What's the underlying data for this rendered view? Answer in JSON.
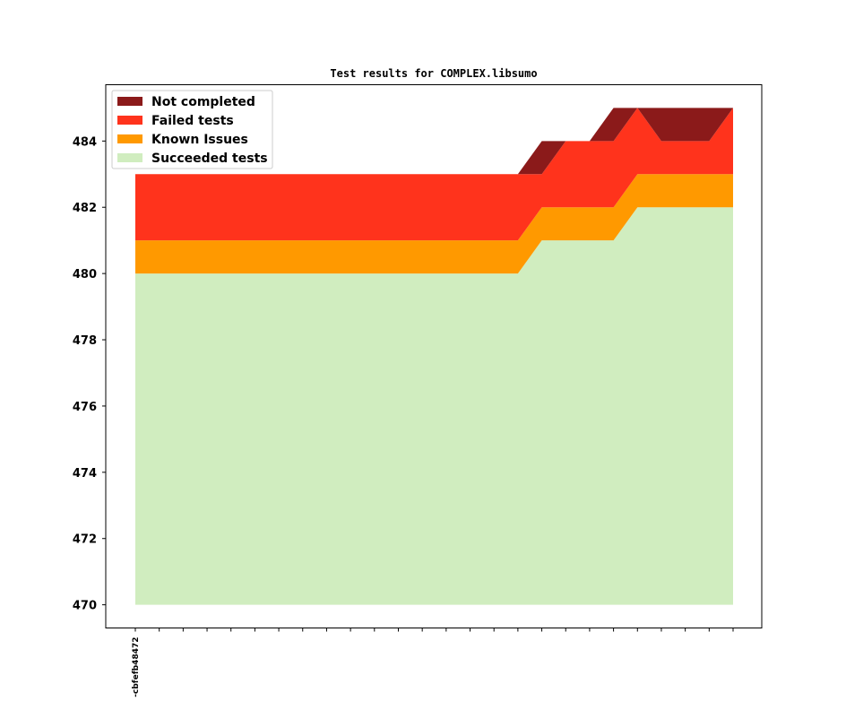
{
  "chart_data": {
    "type": "area",
    "title": "Test results for COMPLEX.libsumo",
    "xlabel": "",
    "ylabel": "",
    "ylim": [
      469.3,
      485.7
    ],
    "yticks": [
      470,
      472,
      474,
      476,
      478,
      480,
      482,
      484
    ],
    "xtick_count": 26,
    "x_labels": [
      "-cbfefb48472"
    ],
    "grid": false,
    "legend_position": "top-left",
    "series": [
      {
        "name": "Succeeded tests",
        "color": "#d0edbf",
        "values": [
          480,
          480,
          480,
          480,
          480,
          480,
          480,
          480,
          480,
          480,
          480,
          480,
          480,
          480,
          480,
          480,
          480,
          481,
          481,
          481,
          481,
          482,
          482,
          482,
          482,
          482
        ]
      },
      {
        "name": "Known Issues",
        "color": "#ff9900",
        "values": [
          1,
          1,
          1,
          1,
          1,
          1,
          1,
          1,
          1,
          1,
          1,
          1,
          1,
          1,
          1,
          1,
          1,
          1,
          1,
          1,
          1,
          1,
          1,
          1,
          1,
          1
        ]
      },
      {
        "name": "Failed tests",
        "color": "#ff331c",
        "values": [
          2,
          2,
          2,
          2,
          2,
          2,
          2,
          2,
          2,
          2,
          2,
          2,
          2,
          2,
          2,
          2,
          2,
          1,
          2,
          2,
          2,
          2,
          1,
          1,
          1,
          2
        ]
      },
      {
        "name": "Not completed",
        "color": "#8b1a1a",
        "values": [
          0,
          0,
          0,
          0,
          0,
          0,
          0,
          0,
          0,
          0,
          0,
          0,
          0,
          0,
          0,
          0,
          0,
          1,
          0,
          0,
          1,
          0,
          1,
          1,
          1,
          0
        ]
      }
    ],
    "legend_order": [
      "Not completed",
      "Failed tests",
      "Known Issues",
      "Succeeded tests"
    ],
    "baseline": 470
  }
}
